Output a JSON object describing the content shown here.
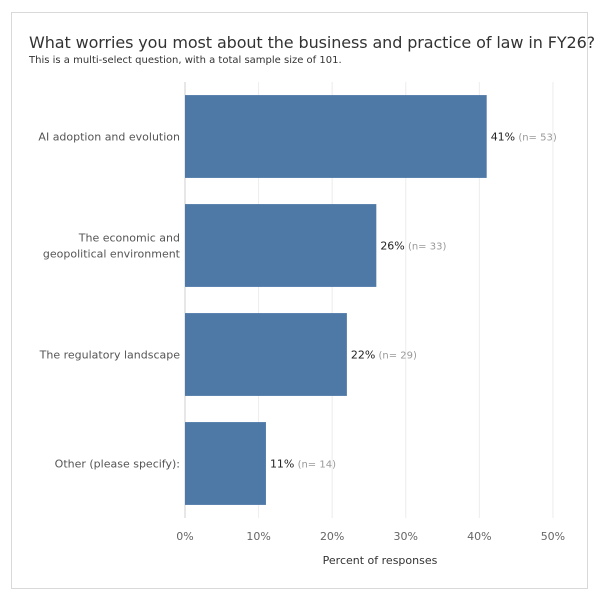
{
  "title": "What worries you most about the business and practice of law in FY26?",
  "subtitle": "This is a multi-select question, with a total sample size of 101.",
  "chart_data": {
    "type": "bar",
    "orientation": "horizontal",
    "title": "What worries you most about the business and practice of law in FY26?",
    "subtitle": "This is a multi-select question, with a total sample size of 101.",
    "categories": [
      [
        "AI adoption and evolution"
      ],
      [
        "The economic and",
        "geopolitical environment"
      ],
      [
        "The regulatory landscape"
      ],
      [
        "Other (please specify):"
      ]
    ],
    "values": [
      41,
      26,
      22,
      11
    ],
    "value_labels": [
      "41%",
      "26%",
      "22%",
      "11%"
    ],
    "n_labels": [
      "(n= 53)",
      "(n= 33)",
      "(n= 29)",
      "(n= 14)"
    ],
    "xlabel": "Percent of responses",
    "xlim": [
      0,
      53
    ],
    "xticks": [
      0,
      10,
      20,
      30,
      40,
      50
    ],
    "xtick_labels": [
      "0%",
      "10%",
      "20%",
      "30%",
      "40%",
      "50%"
    ],
    "grid": "vertical",
    "bar_color": "#4e79a7"
  }
}
